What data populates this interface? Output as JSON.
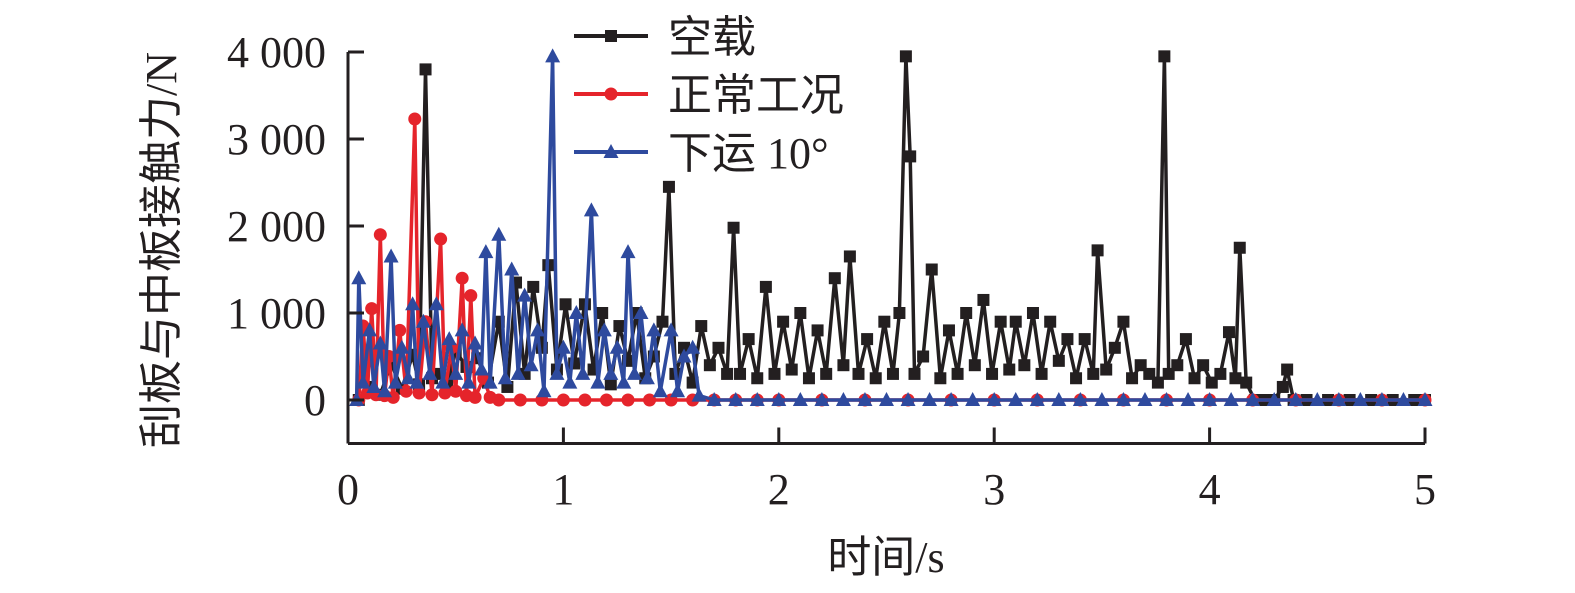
{
  "chart_data": {
    "type": "line",
    "title": "",
    "xlabel": "时间/s",
    "ylabel": "刮板与中板接触力/N",
    "xlim": [
      0,
      5
    ],
    "ylim": [
      -500,
      4000
    ],
    "x_ticks": [
      0,
      1,
      2,
      3,
      4,
      5
    ],
    "x_tick_labels": [
      "0",
      "1",
      "2",
      "3",
      "4",
      "5"
    ],
    "y_ticks": [
      0,
      1000,
      2000,
      3000,
      4000
    ],
    "y_tick_labels": [
      "0",
      "1 000",
      "2 000",
      "3 000",
      "4 000"
    ],
    "grid": false,
    "legend_position": "top-center",
    "series": [
      {
        "name": "空载",
        "color": "#231f20",
        "marker": "square",
        "points": [
          [
            0.05,
            0
          ],
          [
            0.1,
            150
          ],
          [
            0.15,
            60
          ],
          [
            0.2,
            420
          ],
          [
            0.25,
            130
          ],
          [
            0.3,
            520
          ],
          [
            0.33,
            180
          ],
          [
            0.36,
            3800
          ],
          [
            0.39,
            250
          ],
          [
            0.42,
            300
          ],
          [
            0.46,
            180
          ],
          [
            0.5,
            560
          ],
          [
            0.55,
            380
          ],
          [
            0.6,
            480
          ],
          [
            0.65,
            200
          ],
          [
            0.7,
            900
          ],
          [
            0.74,
            150
          ],
          [
            0.78,
            1350
          ],
          [
            0.82,
            300
          ],
          [
            0.86,
            1300
          ],
          [
            0.9,
            600
          ],
          [
            0.93,
            1550
          ],
          [
            0.97,
            350
          ],
          [
            1.01,
            1100
          ],
          [
            1.05,
            420
          ],
          [
            1.1,
            1100
          ],
          [
            1.14,
            350
          ],
          [
            1.18,
            1000
          ],
          [
            1.22,
            180
          ],
          [
            1.26,
            850
          ],
          [
            1.3,
            450
          ],
          [
            1.34,
            1000
          ],
          [
            1.38,
            250
          ],
          [
            1.42,
            500
          ],
          [
            1.46,
            900
          ],
          [
            1.49,
            2450
          ],
          [
            1.52,
            300
          ],
          [
            1.56,
            600
          ],
          [
            1.6,
            200
          ],
          [
            1.64,
            850
          ],
          [
            1.68,
            400
          ],
          [
            1.72,
            600
          ],
          [
            1.76,
            300
          ],
          [
            1.79,
            1980
          ],
          [
            1.82,
            300
          ],
          [
            1.86,
            700
          ],
          [
            1.9,
            250
          ],
          [
            1.94,
            1300
          ],
          [
            1.98,
            300
          ],
          [
            2.02,
            900
          ],
          [
            2.06,
            350
          ],
          [
            2.1,
            1000
          ],
          [
            2.14,
            250
          ],
          [
            2.18,
            800
          ],
          [
            2.22,
            300
          ],
          [
            2.26,
            1400
          ],
          [
            2.3,
            400
          ],
          [
            2.33,
            1650
          ],
          [
            2.37,
            300
          ],
          [
            2.41,
            700
          ],
          [
            2.45,
            250
          ],
          [
            2.49,
            900
          ],
          [
            2.53,
            300
          ],
          [
            2.56,
            1000
          ],
          [
            2.59,
            3950
          ],
          [
            2.61,
            2800
          ],
          [
            2.63,
            300
          ],
          [
            2.67,
            500
          ],
          [
            2.71,
            1500
          ],
          [
            2.75,
            250
          ],
          [
            2.79,
            800
          ],
          [
            2.83,
            300
          ],
          [
            2.87,
            1000
          ],
          [
            2.91,
            400
          ],
          [
            2.95,
            1150
          ],
          [
            2.99,
            300
          ],
          [
            3.03,
            900
          ],
          [
            3.07,
            350
          ],
          [
            3.1,
            900
          ],
          [
            3.14,
            400
          ],
          [
            3.18,
            1000
          ],
          [
            3.22,
            300
          ],
          [
            3.26,
            900
          ],
          [
            3.3,
            450
          ],
          [
            3.34,
            700
          ],
          [
            3.38,
            250
          ],
          [
            3.42,
            700
          ],
          [
            3.46,
            300
          ],
          [
            3.48,
            1720
          ],
          [
            3.52,
            350
          ],
          [
            3.56,
            600
          ],
          [
            3.6,
            900
          ],
          [
            3.64,
            250
          ],
          [
            3.68,
            400
          ],
          [
            3.72,
            300
          ],
          [
            3.76,
            200
          ],
          [
            3.79,
            3950
          ],
          [
            3.81,
            300
          ],
          [
            3.85,
            400
          ],
          [
            3.89,
            700
          ],
          [
            3.93,
            250
          ],
          [
            3.97,
            400
          ],
          [
            4.01,
            200
          ],
          [
            4.05,
            300
          ],
          [
            4.09,
            780
          ],
          [
            4.12,
            250
          ],
          [
            4.14,
            1750
          ],
          [
            4.17,
            200
          ],
          [
            4.21,
            0
          ],
          [
            4.26,
            0
          ],
          [
            4.3,
            0
          ],
          [
            4.34,
            150
          ],
          [
            4.36,
            350
          ],
          [
            4.39,
            0
          ],
          [
            4.45,
            0
          ],
          [
            4.55,
            0
          ],
          [
            4.65,
            0
          ],
          [
            4.75,
            0
          ],
          [
            4.85,
            0
          ],
          [
            4.95,
            0
          ],
          [
            5.0,
            0
          ]
        ]
      },
      {
        "name": "正常工况",
        "color": "#e5242b",
        "marker": "circle",
        "points": [
          [
            0.05,
            0
          ],
          [
            0.07,
            850
          ],
          [
            0.09,
            80
          ],
          [
            0.11,
            1050
          ],
          [
            0.13,
            60
          ],
          [
            0.15,
            1900
          ],
          [
            0.17,
            50
          ],
          [
            0.19,
            500
          ],
          [
            0.21,
            30
          ],
          [
            0.24,
            800
          ],
          [
            0.27,
            100
          ],
          [
            0.31,
            3230
          ],
          [
            0.33,
            80
          ],
          [
            0.36,
            900
          ],
          [
            0.39,
            60
          ],
          [
            0.43,
            1850
          ],
          [
            0.45,
            80
          ],
          [
            0.48,
            600
          ],
          [
            0.5,
            100
          ],
          [
            0.53,
            1400
          ],
          [
            0.55,
            50
          ],
          [
            0.57,
            1200
          ],
          [
            0.59,
            30
          ],
          [
            0.63,
            250
          ],
          [
            0.66,
            30
          ],
          [
            0.7,
            0
          ],
          [
            0.8,
            0
          ],
          [
            0.9,
            0
          ],
          [
            1.0,
            0
          ],
          [
            1.1,
            0
          ],
          [
            1.2,
            0
          ],
          [
            1.3,
            0
          ],
          [
            1.4,
            0
          ],
          [
            1.5,
            0
          ],
          [
            1.6,
            0
          ],
          [
            1.7,
            0
          ],
          [
            1.8,
            0
          ],
          [
            1.9,
            0
          ],
          [
            2.0,
            0
          ],
          [
            2.2,
            0
          ],
          [
            2.4,
            0
          ],
          [
            2.6,
            0
          ],
          [
            2.8,
            0
          ],
          [
            3.0,
            0
          ],
          [
            3.2,
            0
          ],
          [
            3.4,
            0
          ],
          [
            3.6,
            0
          ],
          [
            3.8,
            0
          ],
          [
            4.0,
            0
          ],
          [
            4.2,
            0
          ],
          [
            4.4,
            0
          ],
          [
            4.6,
            0
          ],
          [
            4.8,
            0
          ],
          [
            5.0,
            0
          ]
        ]
      },
      {
        "name": "下运 10°",
        "color": "#2e4a9e",
        "marker": "triangle",
        "points": [
          [
            0.04,
            0
          ],
          [
            0.05,
            1400
          ],
          [
            0.07,
            200
          ],
          [
            0.1,
            800
          ],
          [
            0.12,
            150
          ],
          [
            0.15,
            650
          ],
          [
            0.17,
            100
          ],
          [
            0.2,
            1650
          ],
          [
            0.22,
            200
          ],
          [
            0.25,
            600
          ],
          [
            0.28,
            250
          ],
          [
            0.3,
            1100
          ],
          [
            0.32,
            200
          ],
          [
            0.35,
            900
          ],
          [
            0.38,
            300
          ],
          [
            0.41,
            1100
          ],
          [
            0.44,
            200
          ],
          [
            0.47,
            700
          ],
          [
            0.5,
            300
          ],
          [
            0.53,
            800
          ],
          [
            0.56,
            200
          ],
          [
            0.59,
            650
          ],
          [
            0.62,
            350
          ],
          [
            0.64,
            1700
          ],
          [
            0.66,
            200
          ],
          [
            0.7,
            1900
          ],
          [
            0.73,
            250
          ],
          [
            0.76,
            1500
          ],
          [
            0.79,
            300
          ],
          [
            0.82,
            1200
          ],
          [
            0.85,
            400
          ],
          [
            0.88,
            800
          ],
          [
            0.91,
            100
          ],
          [
            0.95,
            3950
          ],
          [
            0.97,
            300
          ],
          [
            1.0,
            600
          ],
          [
            1.03,
            200
          ],
          [
            1.06,
            1000
          ],
          [
            1.09,
            300
          ],
          [
            1.13,
            2180
          ],
          [
            1.16,
            200
          ],
          [
            1.19,
            800
          ],
          [
            1.22,
            300
          ],
          [
            1.25,
            600
          ],
          [
            1.28,
            200
          ],
          [
            1.3,
            1700
          ],
          [
            1.33,
            300
          ],
          [
            1.36,
            1000
          ],
          [
            1.39,
            250
          ],
          [
            1.42,
            800
          ],
          [
            1.45,
            100
          ],
          [
            1.5,
            800
          ],
          [
            1.53,
            100
          ],
          [
            1.56,
            500
          ],
          [
            1.6,
            600
          ],
          [
            1.63,
            50
          ],
          [
            1.7,
            0
          ],
          [
            1.8,
            0
          ],
          [
            1.9,
            0
          ],
          [
            2.0,
            0
          ],
          [
            2.1,
            0
          ],
          [
            2.2,
            0
          ],
          [
            2.3,
            0
          ],
          [
            2.4,
            0
          ],
          [
            2.5,
            0
          ],
          [
            2.6,
            0
          ],
          [
            2.7,
            0
          ],
          [
            2.8,
            0
          ],
          [
            2.9,
            0
          ],
          [
            3.0,
            0
          ],
          [
            3.1,
            0
          ],
          [
            3.2,
            0
          ],
          [
            3.3,
            0
          ],
          [
            3.4,
            0
          ],
          [
            3.5,
            0
          ],
          [
            3.6,
            0
          ],
          [
            3.7,
            0
          ],
          [
            3.8,
            0
          ],
          [
            3.9,
            0
          ],
          [
            4.0,
            0
          ],
          [
            4.1,
            0
          ],
          [
            4.2,
            0
          ],
          [
            4.3,
            0
          ],
          [
            4.4,
            0
          ],
          [
            4.5,
            0
          ],
          [
            4.6,
            0
          ],
          [
            4.7,
            0
          ],
          [
            4.8,
            0
          ],
          [
            4.9,
            0
          ],
          [
            5.0,
            0
          ]
        ]
      }
    ]
  }
}
